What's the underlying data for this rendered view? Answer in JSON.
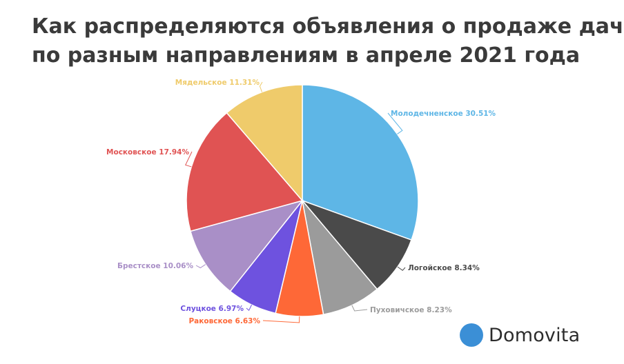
{
  "title": {
    "line1": "Как распределяются объявления о продаже дач",
    "line2": "по разным направлениям в апреле 2021 года"
  },
  "chart_data": {
    "type": "pie",
    "title": "Как распределяются объявления о продаже дач по разным направлениям в апреле 2021 года",
    "start": "12 o'clock",
    "direction": "clockwise",
    "slices": [
      {
        "name": "Молодечненское",
        "value": 30.51,
        "label": "Молодечненское 30.51%",
        "color": "#5eb6e6"
      },
      {
        "name": "Логойское",
        "value": 8.34,
        "label": "Логойское 8.34%",
        "color": "#4a4a4a"
      },
      {
        "name": "Пуховичское",
        "value": 8.23,
        "label": "Пуховичское 8.23%",
        "color": "#9b9b9b"
      },
      {
        "name": "Раковское",
        "value": 6.63,
        "label": "Раковское 6.63%",
        "color": "#fe6837"
      },
      {
        "name": "Слуцкое",
        "value": 6.97,
        "label": "Слуцкое 6.97%",
        "color": "#6e52df"
      },
      {
        "name": "Брестское",
        "value": 10.06,
        "label": "Брестское 10.06%",
        "color": "#a98fc7"
      },
      {
        "name": "Московское",
        "value": 17.94,
        "label": "Московское 17.94%",
        "color": "#e05353"
      },
      {
        "name": "Мядельское",
        "value": 11.31,
        "label": "Мядельское 11.31%",
        "color": "#efcb6b"
      }
    ]
  },
  "brand": {
    "name": "Domovita",
    "color": "#3b8fd6"
  }
}
